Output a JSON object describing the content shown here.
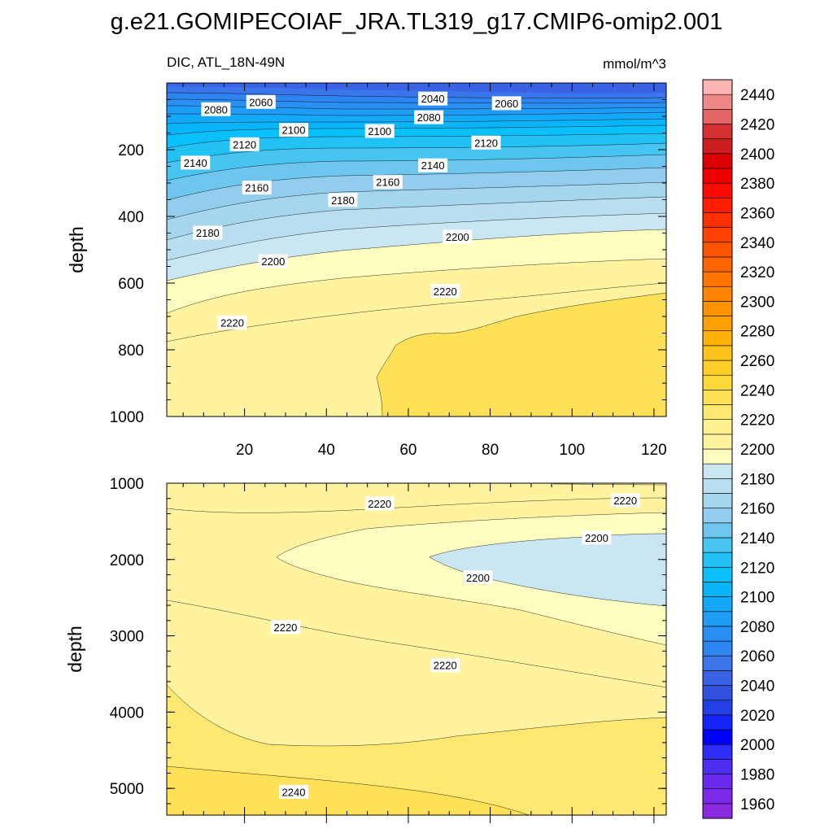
{
  "chart_data": {
    "type": "contour",
    "title": "g.e21.GOMIPECOIAF_JRA.TL319_g17.CMIP6-omip2.001",
    "subtitle_left": "DIC, ATL_18N-49N",
    "subtitle_right": "mmol/m^3",
    "x_axis": {
      "label": "",
      "ticks": [
        20,
        40,
        60,
        80,
        100,
        120
      ],
      "tick_labels": [
        "20",
        "40",
        "60",
        "80",
        "100",
        "120"
      ],
      "range": [
        1,
        123
      ]
    },
    "panels": [
      {
        "name": "upper",
        "ylabel": "depth",
        "ylim": [
          0,
          1000
        ],
        "y_ticks": [
          200,
          400,
          600,
          800,
          1000
        ],
        "y_tick_labels": [
          "200",
          "400",
          "600",
          "800",
          "1000"
        ],
        "contour_labels": [
          {
            "text": "2060",
            "x": 24,
            "y": 58
          },
          {
            "text": "2040",
            "x": 66,
            "y": 48
          },
          {
            "text": "2060",
            "x": 84,
            "y": 62
          },
          {
            "text": "2080",
            "x": 13,
            "y": 80
          },
          {
            "text": "2080",
            "x": 65,
            "y": 104
          },
          {
            "text": "2100",
            "x": 32,
            "y": 142
          },
          {
            "text": "2100",
            "x": 53,
            "y": 145
          },
          {
            "text": "2120",
            "x": 20,
            "y": 185
          },
          {
            "text": "2120",
            "x": 79,
            "y": 180
          },
          {
            "text": "2140",
            "x": 8,
            "y": 240
          },
          {
            "text": "2140",
            "x": 66,
            "y": 248
          },
          {
            "text": "2160",
            "x": 23,
            "y": 315
          },
          {
            "text": "2160",
            "x": 55,
            "y": 298
          },
          {
            "text": "2180",
            "x": 44,
            "y": 352
          },
          {
            "text": "2180",
            "x": 11,
            "y": 450
          },
          {
            "text": "2200",
            "x": 72,
            "y": 462
          },
          {
            "text": "2200",
            "x": 27,
            "y": 535
          },
          {
            "text": "2220",
            "x": 69,
            "y": 625
          },
          {
            "text": "2220",
            "x": 17,
            "y": 720
          }
        ]
      },
      {
        "name": "lower",
        "ylabel": "depth",
        "ylim": [
          1000,
          5350
        ],
        "y_ticks": [
          1000,
          2000,
          3000,
          4000,
          5000
        ],
        "y_tick_labels": [
          "1000",
          "2000",
          "3000",
          "4000",
          "5000"
        ],
        "contour_labels": [
          {
            "text": "2220",
            "x": 53,
            "y": 1270
          },
          {
            "text": "2220",
            "x": 113,
            "y": 1230
          },
          {
            "text": "2200",
            "x": 106,
            "y": 1720
          },
          {
            "text": "2200",
            "x": 77,
            "y": 2240
          },
          {
            "text": "2220",
            "x": 30,
            "y": 2890
          },
          {
            "text": "2220",
            "x": 69,
            "y": 3390
          },
          {
            "text": "2240",
            "x": 32,
            "y": 5050
          }
        ]
      }
    ],
    "colorbar": {
      "levels": [
        1960,
        1980,
        2000,
        2020,
        2040,
        2060,
        2080,
        2100,
        2120,
        2140,
        2160,
        2180,
        2200,
        2220,
        2240,
        2260,
        2280,
        2300,
        2320,
        2340,
        2360,
        2380,
        2400,
        2420,
        2440
      ],
      "level_labels": [
        "1960",
        "1980",
        "2000",
        "2020",
        "2040",
        "2060",
        "2080",
        "2100",
        "2120",
        "2140",
        "2160",
        "2180",
        "2200",
        "2220",
        "2240",
        "2260",
        "2280",
        "2300",
        "2320",
        "2340",
        "2360",
        "2380",
        "2400",
        "2420",
        "2440"
      ],
      "interval": 10,
      "colors": [
        "#8a2be2",
        "#7a2ae8",
        "#6a2aee",
        "#4e2cf2",
        "#2f2cf8",
        "#0000ff",
        "#1424f4",
        "#2240e6",
        "#3250e0",
        "#3a62e4",
        "#3a75ea",
        "#2e84f0",
        "#2a8ff2",
        "#1e9cf6",
        "#14a8f8",
        "#0ab4fa",
        "#0ac0fa",
        "#22c2f4",
        "#48c4f0",
        "#6ec6ee",
        "#92cdee",
        "#a6d6ee",
        "#b8def0",
        "#cae6f2",
        "#fdfdc0",
        "#fff3a0",
        "#fff090",
        "#ffe872",
        "#ffe158",
        "#ffd83a",
        "#ffce28",
        "#ffc21a",
        "#ffb00a",
        "#ffa000",
        "#ff9200",
        "#ff8400",
        "#ff7600",
        "#ff6600",
        "#ff5400",
        "#ff4200",
        "#ff3000",
        "#ff1e00",
        "#ff0a00",
        "#ee0000",
        "#dd0000",
        "#cc1e1e",
        "#d43232",
        "#e26464",
        "#ee8888",
        "#ffb4b4"
      ]
    }
  }
}
